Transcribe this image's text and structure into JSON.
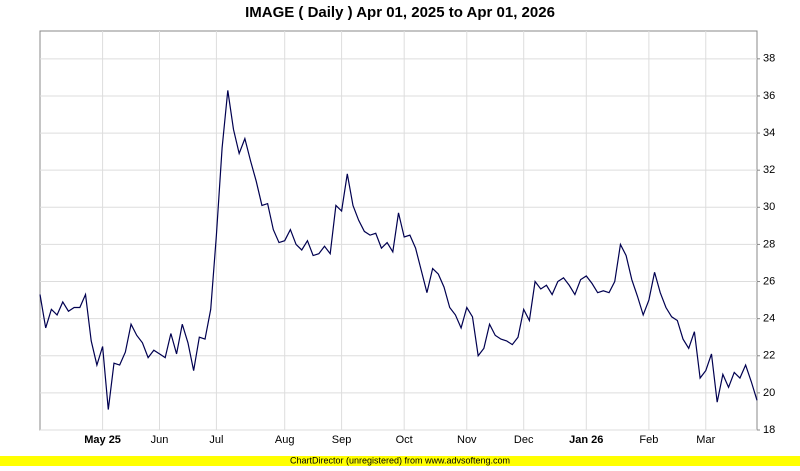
{
  "chart_data": {
    "type": "line",
    "title": "IMAGE ( Daily ) Apr 01, 2025 to Apr 01, 2026",
    "footer": "ChartDirector (unregistered) from www.advsofteng.com",
    "categories": [
      null,
      null,
      null,
      null,
      null,
      null,
      null,
      null,
      null,
      null,
      null,
      "May 25",
      null,
      null,
      null,
      null,
      null,
      null,
      null,
      null,
      null,
      "Jun",
      null,
      null,
      null,
      null,
      null,
      null,
      null,
      null,
      null,
      "Jul",
      null,
      null,
      null,
      null,
      null,
      null,
      null,
      null,
      null,
      null,
      null,
      "Aug",
      null,
      null,
      null,
      null,
      null,
      null,
      null,
      null,
      null,
      "Sep",
      null,
      null,
      null,
      null,
      null,
      null,
      null,
      null,
      null,
      null,
      "Oct",
      null,
      null,
      null,
      null,
      null,
      null,
      null,
      null,
      null,
      null,
      "Nov",
      null,
      null,
      null,
      null,
      null,
      null,
      null,
      null,
      null,
      "Dec",
      null,
      null,
      null,
      null,
      null,
      null,
      null,
      null,
      null,
      null,
      "Jan 26",
      null,
      null,
      null,
      null,
      null,
      null,
      null,
      null,
      null,
      null,
      "Feb",
      null,
      null,
      null,
      null,
      null,
      null,
      null,
      null,
      null,
      "Mar",
      null,
      null,
      null,
      null,
      null,
      null,
      null,
      null,
      null
    ],
    "values": [
      25.3,
      23.5,
      24.5,
      24.2,
      24.9,
      24.4,
      24.6,
      24.6,
      25.3,
      22.8,
      21.5,
      22.5,
      19.1,
      21.6,
      21.5,
      22.2,
      23.7,
      23.1,
      22.7,
      21.9,
      22.3,
      22.1,
      21.9,
      23.2,
      22.1,
      23.7,
      22.7,
      21.2,
      23.0,
      22.9,
      24.5,
      28.5,
      33.2,
      36.3,
      34.2,
      32.9,
      33.7,
      32.5,
      31.4,
      30.1,
      30.2,
      28.8,
      28.1,
      28.2,
      28.8,
      28.0,
      27.7,
      28.2,
      27.4,
      27.5,
      27.9,
      27.5,
      30.1,
      29.8,
      31.8,
      30.1,
      29.3,
      28.7,
      28.5,
      28.6,
      27.8,
      28.1,
      27.6,
      29.7,
      28.4,
      28.5,
      27.8,
      26.6,
      25.4,
      26.7,
      26.4,
      25.7,
      24.6,
      24.2,
      23.5,
      24.6,
      24.1,
      22.0,
      22.4,
      23.7,
      23.1,
      22.9,
      22.8,
      22.6,
      23.0,
      24.5,
      23.9,
      26.0,
      25.6,
      25.8,
      25.3,
      26.0,
      26.2,
      25.8,
      25.3,
      26.1,
      26.3,
      25.9,
      25.4,
      25.5,
      25.4,
      26.0,
      28.0,
      27.4,
      26.1,
      25.2,
      24.2,
      25.0,
      26.5,
      25.4,
      24.6,
      24.1,
      23.9,
      22.9,
      22.4,
      23.3,
      20.8,
      21.2,
      22.1,
      19.5,
      21.0,
      20.3,
      21.1,
      20.8,
      21.5,
      20.6,
      19.6
    ],
    "color": "#000050",
    "ylim": [
      18,
      39.5
    ],
    "yticks": [
      18,
      20,
      22,
      24,
      26,
      28,
      30,
      32,
      34,
      36,
      38
    ],
    "grid": true
  }
}
